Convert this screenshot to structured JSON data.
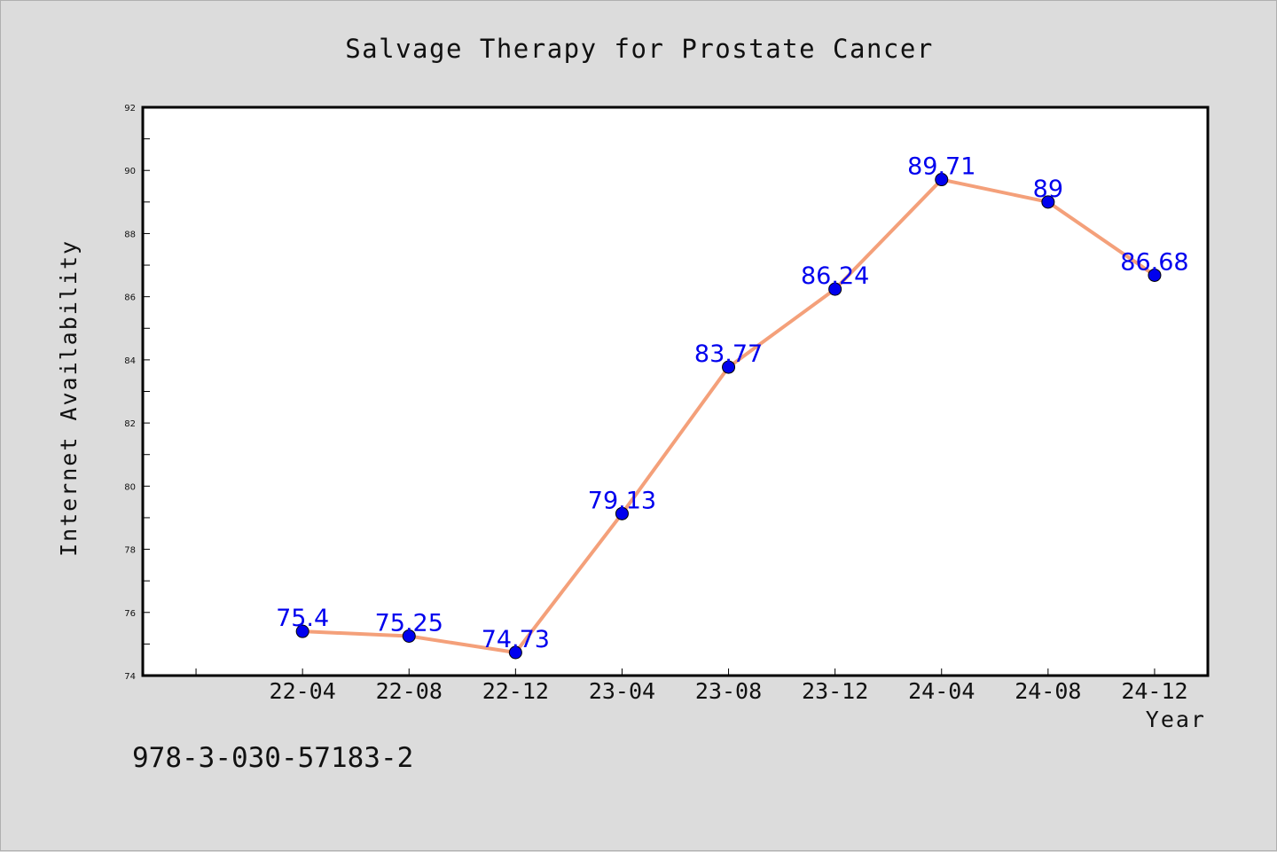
{
  "chart_data": {
    "type": "line",
    "title": "Salvage Therapy for Prostate Cancer",
    "xlabel": "Year",
    "ylabel": "Internet Availability",
    "categories": [
      "22-04",
      "22-08",
      "22-12",
      "23-04",
      "23-08",
      "23-12",
      "24-04",
      "24-08",
      "24-12"
    ],
    "series": [
      {
        "values": [
          75.4,
          75.25,
          74.73,
          79.13,
          83.77,
          86.24,
          89.71,
          89,
          86.68
        ],
        "data_labels": [
          "75.4",
          "75.25",
          "74.73",
          "79.13",
          "83.77",
          "86.24",
          "89.71",
          "89",
          "86.68"
        ],
        "line_color": "#f4a07a",
        "marker_color": "#0000ee",
        "label_color": "#0000ee"
      }
    ],
    "ylim": [
      74,
      92
    ],
    "yticks": [
      "74",
      "76",
      "78",
      "80",
      "82",
      "84",
      "86",
      "88",
      "90",
      "92"
    ],
    "grid": false,
    "legend": false
  },
  "annotation": {
    "text": "978-3-030-57183-2"
  },
  "colors": {
    "background": "#dcdcdc",
    "plot_background": "#ffffff",
    "axis": "#000000"
  }
}
